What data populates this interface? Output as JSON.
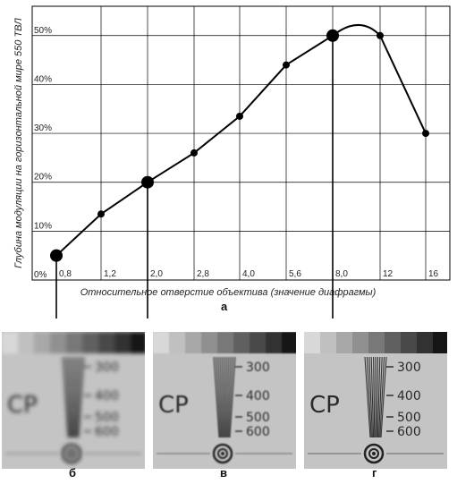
{
  "chart_data": {
    "type": "line",
    "ylabel": "Глубина модуляции на горизонтальной мире 550 ТВЛ",
    "xlabel": "Относительное отверстие объектива (значение диафрагмы)",
    "x_tick_labels": [
      "0,8",
      "1,2",
      "2,0",
      "2,8",
      "4,0",
      "5,6",
      "8,0",
      "12",
      "16"
    ],
    "y_tick_labels": [
      "0%",
      "10%",
      "20%",
      "30%",
      "40%",
      "50%"
    ],
    "ylim": [
      0,
      56
    ],
    "grid": true,
    "series": [
      {
        "points": [
          {
            "x": "0,8",
            "y": 5
          },
          {
            "x": "1,2",
            "y": 13.5
          },
          {
            "x": "2,0",
            "y": 20
          },
          {
            "x": "2,8",
            "y": 26
          },
          {
            "x": "4,0",
            "y": 33.5
          },
          {
            "x": "5,6",
            "y": 44
          },
          {
            "x": "8,0",
            "y": 50
          },
          {
            "x": "12",
            "y": 50
          },
          {
            "x": "16",
            "y": 30
          }
        ],
        "highlighted": [
          "0,8",
          "2,0",
          "8,0"
        ],
        "peak": {
          "between": [
            "8,0",
            "12"
          ],
          "y": 52.5
        }
      }
    ],
    "panel_caption": "а"
  },
  "photos": [
    {
      "caption": "б",
      "scale_labels": [
        "300",
        "400",
        "500",
        "600"
      ],
      "text": "CP",
      "blur": 2.2
    },
    {
      "caption": "в",
      "scale_labels": [
        "300",
        "400",
        "500",
        "600"
      ],
      "text": "CP",
      "blur": 0.9
    },
    {
      "caption": "г",
      "scale_labels": [
        "300",
        "400",
        "500",
        "600"
      ],
      "text": "CP",
      "blur": 0.3
    }
  ],
  "colors": {
    "line": "#000000",
    "grid": "#000000",
    "photo_bg": "#c4c4c4"
  }
}
